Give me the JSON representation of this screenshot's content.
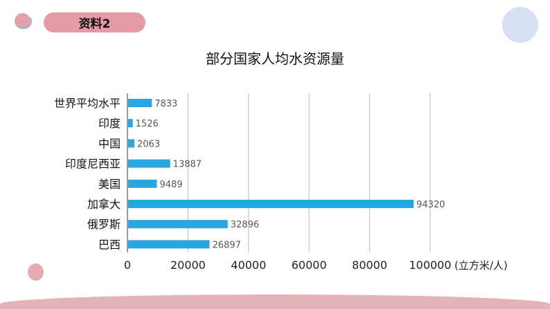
{
  "header": {
    "label": "资料2"
  },
  "chart_data": {
    "type": "bar",
    "orientation": "horizontal",
    "title": "部分国家人均水资源量",
    "categories": [
      "世界平均水平",
      "印度",
      "中国",
      "印度尼西亚",
      "美国",
      "加拿大",
      "俄罗斯",
      "巴西"
    ],
    "values": [
      7833,
      1526,
      2063,
      13887,
      9489,
      94320,
      32896,
      26897
    ],
    "xlim": [
      0,
      100000
    ],
    "xticks": [
      "0",
      "20000",
      "40000",
      "60000",
      "80000",
      "100000"
    ],
    "xlabel": "(立方米/人)",
    "grid": true,
    "bar_color": "#29a6df"
  }
}
